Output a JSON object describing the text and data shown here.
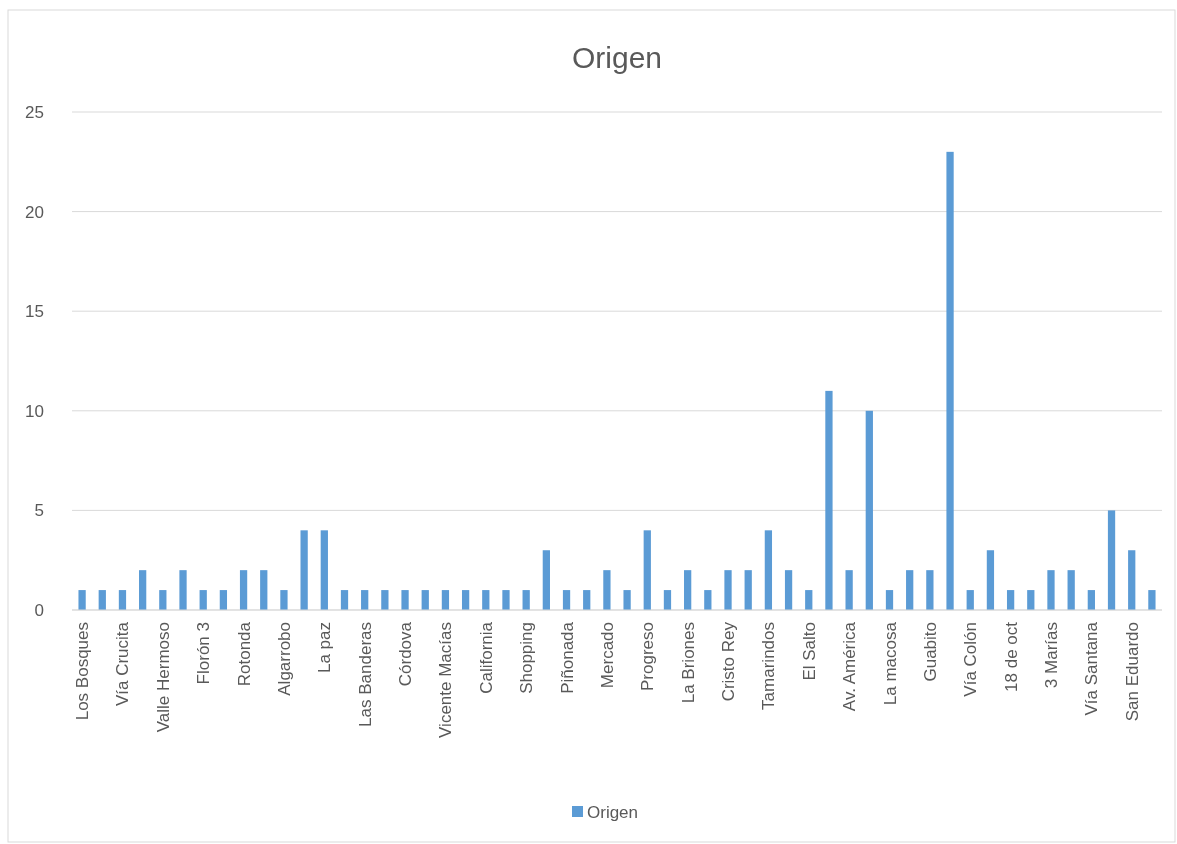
{
  "chart_data": {
    "type": "bar",
    "title": "Origen",
    "categories": [
      "Los Bosques",
      null,
      "Vía Crucita",
      null,
      "Valle Hermoso",
      null,
      "Florón 3",
      null,
      "Rotonda",
      null,
      "Algarrobo",
      null,
      "La paz",
      null,
      "Las Banderas",
      null,
      "Córdova",
      null,
      "Vicente Macías",
      null,
      "California",
      null,
      "Shopping",
      null,
      "Piñonada",
      null,
      "Mercado",
      null,
      "Progreso",
      null,
      "La Briones",
      null,
      "Cristo Rey",
      null,
      "Tamarindos",
      null,
      "El Salto",
      null,
      "Av. América",
      null,
      "La macosa",
      null,
      "Guabito",
      null,
      "Vía Colón",
      null,
      "18 de oct",
      null,
      "3 Marías",
      null,
      "Vía Santana",
      null,
      "San Eduardo",
      null
    ],
    "series": [
      {
        "name": "Origen",
        "color": "#5b9bd5",
        "values": [
          1,
          1,
          1,
          2,
          1,
          2,
          1,
          1,
          2,
          2,
          1,
          4,
          4,
          1,
          1,
          1,
          1,
          1,
          1,
          1,
          1,
          1,
          1,
          3,
          1,
          1,
          2,
          1,
          4,
          1,
          2,
          1,
          2,
          2,
          4,
          2,
          1,
          11,
          2,
          10,
          1,
          2,
          2,
          23,
          1,
          3,
          1,
          1,
          2,
          2,
          1,
          5,
          3,
          1
        ]
      }
    ],
    "ylim": [
      0,
      25
    ],
    "yticks": [
      0,
      5,
      10,
      15,
      20,
      25
    ],
    "grid": "y",
    "legend": "bottom"
  }
}
